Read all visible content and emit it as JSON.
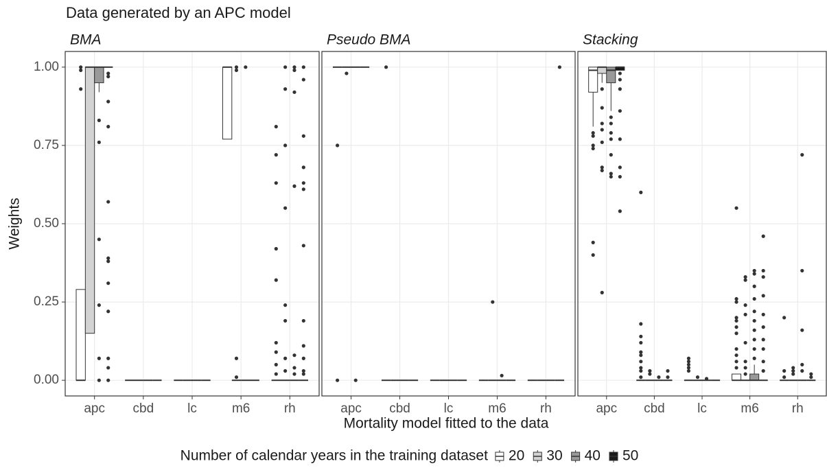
{
  "figure": {
    "title": "Data generated by an APC model",
    "x_label": "Mortality model fitted to the data",
    "y_label": "Weights",
    "legend_title": "Number of calendar years in the training dataset",
    "ylim": [
      -0.05,
      1.05
    ],
    "yticks": [
      {
        "value": 0,
        "label": "0.00"
      },
      {
        "value": 0.25,
        "label": "0.25"
      },
      {
        "value": 0.5,
        "label": "0.50"
      },
      {
        "value": 0.75,
        "label": "0.75"
      },
      {
        "value": 1,
        "label": "1.00"
      }
    ],
    "grid": true,
    "legend_position": "bottom"
  },
  "chart_data": [
    {
      "type": "box",
      "title": "BMA",
      "categories": [
        "apc",
        "cbd",
        "lc",
        "m6",
        "rh"
      ],
      "series": [
        {
          "name": "20",
          "color": "#ffffff",
          "values": [
            {
              "low": 0,
              "q1": 0,
              "median": 0,
              "q3": 0.29,
              "high": 0.29,
              "outliers": [
                1,
                0.99,
                0.93
              ]
            },
            {
              "low": 0,
              "q1": 0,
              "median": 0,
              "q3": 0,
              "high": 0,
              "outliers": []
            },
            {
              "low": 0,
              "q1": 0,
              "median": 0,
              "q3": 0,
              "high": 0,
              "outliers": []
            },
            {
              "low": 0.77,
              "q1": 0.77,
              "median": 1,
              "q3": 1,
              "high": 1,
              "outliers": []
            },
            {
              "low": 0,
              "q1": 0,
              "median": 0,
              "q3": 0,
              "high": 0,
              "outliers": [
                0.81,
                0.72,
                0.63,
                0.42,
                0.32,
                0.12,
                0.09,
                0.05,
                0.02
              ]
            }
          ]
        },
        {
          "name": "30",
          "color": "#d3d3d3",
          "values": [
            {
              "low": 0.15,
              "q1": 0.15,
              "median": 1,
              "q3": 1,
              "high": 1,
              "outliers": []
            },
            {
              "low": 0,
              "q1": 0,
              "median": 0,
              "q3": 0,
              "high": 0,
              "outliers": []
            },
            {
              "low": 0,
              "q1": 0,
              "median": 0,
              "q3": 0,
              "high": 0,
              "outliers": []
            },
            {
              "low": 0,
              "q1": 0,
              "median": 0,
              "q3": 0,
              "high": 0,
              "outliers": [
                1,
                0.99,
                0.07,
                0.01
              ]
            },
            {
              "low": 0,
              "q1": 0,
              "median": 0,
              "q3": 0,
              "high": 0,
              "outliers": [
                1,
                0.93,
                0.75,
                0.55,
                0.24,
                0.19,
                0.07,
                0.03
              ]
            }
          ]
        },
        {
          "name": "40",
          "color": "#999999",
          "values": [
            {
              "low": 0.92,
              "q1": 0.95,
              "median": 1,
              "q3": 1,
              "high": 1,
              "outliers": [
                0.83,
                0.76,
                0.45,
                0.24,
                0.07,
                0
              ]
            },
            {
              "low": 0,
              "q1": 0,
              "median": 0,
              "q3": 0,
              "high": 0,
              "outliers": []
            },
            {
              "low": 0,
              "q1": 0,
              "median": 0,
              "q3": 0,
              "high": 0,
              "outliers": []
            },
            {
              "low": 0,
              "q1": 0,
              "median": 0,
              "q3": 0,
              "high": 0,
              "outliers": [
                1
              ]
            },
            {
              "low": 0,
              "q1": 0,
              "median": 0,
              "q3": 0,
              "high": 0,
              "outliers": [
                1,
                0.99,
                0.92,
                0.62,
                0.08,
                0.04,
                0.02
              ]
            }
          ]
        },
        {
          "name": "50",
          "color": "#1a1a1a",
          "values": [
            {
              "low": 1,
              "q1": 1,
              "median": 1,
              "q3": 1,
              "high": 1,
              "outliers": [
                0.98,
                0.97,
                0.89,
                0.81,
                0.57,
                0.39,
                0.38,
                0.31,
                0.22,
                0.07,
                0.04,
                0
              ]
            },
            {
              "low": 0,
              "q1": 0,
              "median": 0,
              "q3": 0,
              "high": 0,
              "outliers": []
            },
            {
              "low": 0,
              "q1": 0,
              "median": 0,
              "q3": 0,
              "high": 0,
              "outliers": []
            },
            {
              "low": 0,
              "q1": 0,
              "median": 0,
              "q3": 0,
              "high": 0,
              "outliers": []
            },
            {
              "low": 0,
              "q1": 0,
              "median": 0,
              "q3": 0,
              "high": 0,
              "outliers": [
                1,
                0.96,
                0.78,
                0.68,
                0.63,
                0.61,
                0.43,
                0.19,
                0.11,
                0.07,
                0.03,
                0.02
              ]
            }
          ]
        }
      ]
    },
    {
      "type": "box",
      "title": "Pseudo BMA",
      "categories": [
        "apc",
        "cbd",
        "lc",
        "m6",
        "rh"
      ],
      "series": [
        {
          "name": "20",
          "color": "#ffffff",
          "values": [
            {
              "low": 1,
              "q1": 1,
              "median": 1,
              "q3": 1,
              "high": 1,
              "outliers": [
                0.75,
                0
              ]
            },
            {
              "low": 0,
              "q1": 0,
              "median": 0,
              "q3": 0,
              "high": 0,
              "outliers": [
                1
              ]
            },
            {
              "low": 0,
              "q1": 0,
              "median": 0,
              "q3": 0,
              "high": 0,
              "outliers": []
            },
            {
              "low": 0,
              "q1": 0,
              "median": 0,
              "q3": 0,
              "high": 0,
              "outliers": []
            },
            {
              "low": 0,
              "q1": 0,
              "median": 0,
              "q3": 0,
              "high": 0,
              "outliers": []
            }
          ]
        },
        {
          "name": "30",
          "color": "#d3d3d3",
          "values": [
            {
              "low": 1,
              "q1": 1,
              "median": 1,
              "q3": 1,
              "high": 1,
              "outliers": [
                0.98
              ]
            },
            {
              "low": 0,
              "q1": 0,
              "median": 0,
              "q3": 0,
              "high": 0,
              "outliers": []
            },
            {
              "low": 0,
              "q1": 0,
              "median": 0,
              "q3": 0,
              "high": 0,
              "outliers": []
            },
            {
              "low": 0,
              "q1": 0,
              "median": 0,
              "q3": 0,
              "high": 0,
              "outliers": [
                0.25
              ]
            },
            {
              "low": 0,
              "q1": 0,
              "median": 0,
              "q3": 0,
              "high": 0,
              "outliers": []
            }
          ]
        },
        {
          "name": "40",
          "color": "#999999",
          "values": [
            {
              "low": 1,
              "q1": 1,
              "median": 1,
              "q3": 1,
              "high": 1,
              "outliers": [
                0
              ]
            },
            {
              "low": 0,
              "q1": 0,
              "median": 0,
              "q3": 0,
              "high": 0,
              "outliers": []
            },
            {
              "low": 0,
              "q1": 0,
              "median": 0,
              "q3": 0,
              "high": 0,
              "outliers": []
            },
            {
              "low": 0,
              "q1": 0,
              "median": 0,
              "q3": 0,
              "high": 0,
              "outliers": [
                0.015
              ]
            },
            {
              "low": 0,
              "q1": 0,
              "median": 0,
              "q3": 0,
              "high": 0,
              "outliers": []
            }
          ]
        },
        {
          "name": "50",
          "color": "#1a1a1a",
          "values": [
            {
              "low": 1,
              "q1": 1,
              "median": 1,
              "q3": 1,
              "high": 1,
              "outliers": []
            },
            {
              "low": 0,
              "q1": 0,
              "median": 0,
              "q3": 0,
              "high": 0,
              "outliers": []
            },
            {
              "low": 0,
              "q1": 0,
              "median": 0,
              "q3": 0,
              "high": 0,
              "outliers": []
            },
            {
              "low": 0,
              "q1": 0,
              "median": 0,
              "q3": 0,
              "high": 0,
              "outliers": []
            },
            {
              "low": 0,
              "q1": 0,
              "median": 0,
              "q3": 0,
              "high": 0,
              "outliers": [
                1
              ]
            }
          ]
        }
      ]
    },
    {
      "type": "box",
      "title": "Stacking",
      "categories": [
        "apc",
        "cbd",
        "lc",
        "m6",
        "rh"
      ],
      "series": [
        {
          "name": "20",
          "color": "#ffffff",
          "values": [
            {
              "low": 0.81,
              "q1": 0.92,
              "median": 0.99,
              "q3": 1,
              "high": 1,
              "outliers": [
                0.79,
                0.78,
                0.75,
                0.74,
                0.44,
                0.4
              ]
            },
            {
              "low": 0,
              "q1": 0,
              "median": 0,
              "q3": 0,
              "high": 0,
              "outliers": [
                0.6,
                0.18,
                0.14,
                0.12,
                0.09,
                0.08,
                0.06,
                0.04,
                0.03,
                0.01
              ]
            },
            {
              "low": 0,
              "q1": 0,
              "median": 0,
              "q3": 0,
              "high": 0,
              "outliers": [
                0.07,
                0.06,
                0.05,
                0.04,
                0.03
              ]
            },
            {
              "low": 0,
              "q1": 0,
              "median": 0,
              "q3": 0.02,
              "high": 0.02,
              "outliers": [
                0.55,
                0.26,
                0.25,
                0.2,
                0.19,
                0.17,
                0.15,
                0.1,
                0.08,
                0.06,
                0.04
              ]
            },
            {
              "low": 0,
              "q1": 0,
              "median": 0,
              "q3": 0,
              "high": 0,
              "outliers": [
                0.2,
                0.03,
                0.01
              ]
            }
          ]
        },
        {
          "name": "30",
          "color": "#d3d3d3",
          "values": [
            {
              "low": 0.95,
              "q1": 0.98,
              "median": 1,
              "q3": 1,
              "high": 1,
              "outliers": [
                0.93,
                0.87,
                0.82,
                0.8,
                0.76,
                0.68,
                0.67,
                0.28
              ]
            },
            {
              "low": 0,
              "q1": 0,
              "median": 0,
              "q3": 0,
              "high": 0,
              "outliers": [
                0.03,
                0.02
              ]
            },
            {
              "low": 0,
              "q1": 0,
              "median": 0,
              "q3": 0,
              "high": 0,
              "outliers": [
                0.01
              ]
            },
            {
              "low": 0,
              "q1": 0,
              "median": 0,
              "q3": 0,
              "high": 0,
              "outliers": [
                0.33,
                0.32,
                0.24,
                0.21,
                0.12,
                0.06,
                0.04,
                0.02
              ]
            },
            {
              "low": 0,
              "q1": 0,
              "median": 0,
              "q3": 0,
              "high": 0,
              "outliers": [
                0.04,
                0.03,
                0.02
              ]
            }
          ]
        },
        {
          "name": "40",
          "color": "#999999",
          "values": [
            {
              "low": 0.86,
              "q1": 0.95,
              "median": 0.99,
              "q3": 1,
              "high": 1,
              "outliers": [
                0.84,
                0.82,
                0.79,
                0.77,
                0.72,
                0.66,
                0.65
              ]
            },
            {
              "low": 0,
              "q1": 0,
              "median": 0,
              "q3": 0,
              "high": 0,
              "outliers": [
                0.01
              ]
            },
            {
              "low": 0,
              "q1": 0,
              "median": 0,
              "q3": 0,
              "high": 0,
              "outliers": [
                0.005
              ]
            },
            {
              "low": 0,
              "q1": 0,
              "median": 0,
              "q3": 0.02,
              "high": 0.05,
              "outliers": [
                0.35,
                0.34,
                0.3,
                0.26,
                0.22,
                0.19,
                0.16,
                0.13,
                0.1,
                0.07
              ]
            },
            {
              "low": 0,
              "q1": 0,
              "median": 0,
              "q3": 0,
              "high": 0,
              "outliers": [
                0.72,
                0.35,
                0.16,
                0.05,
                0.03
              ]
            }
          ]
        },
        {
          "name": "50",
          "color": "#1a1a1a",
          "values": [
            {
              "low": 0.99,
              "q1": 0.99,
              "median": 1,
              "q3": 1,
              "high": 1,
              "outliers": [
                0.98,
                0.96,
                0.93,
                0.86,
                0.77,
                0.68,
                0.65,
                0.54
              ]
            },
            {
              "low": 0,
              "q1": 0,
              "median": 0,
              "q3": 0,
              "high": 0,
              "outliers": [
                0.03,
                0.01
              ]
            },
            {
              "low": 0,
              "q1": 0,
              "median": 0,
              "q3": 0,
              "high": 0,
              "outliers": []
            },
            {
              "low": 0,
              "q1": 0,
              "median": 0,
              "q3": 0,
              "high": 0,
              "outliers": [
                0.46,
                0.35,
                0.33,
                0.27,
                0.21,
                0.17,
                0.13,
                0.1,
                0.06,
                0.03
              ]
            },
            {
              "low": 0,
              "q1": 0,
              "median": 0,
              "q3": 0,
              "high": 0,
              "outliers": [
                0.02,
                0.01
              ]
            }
          ]
        }
      ]
    }
  ]
}
